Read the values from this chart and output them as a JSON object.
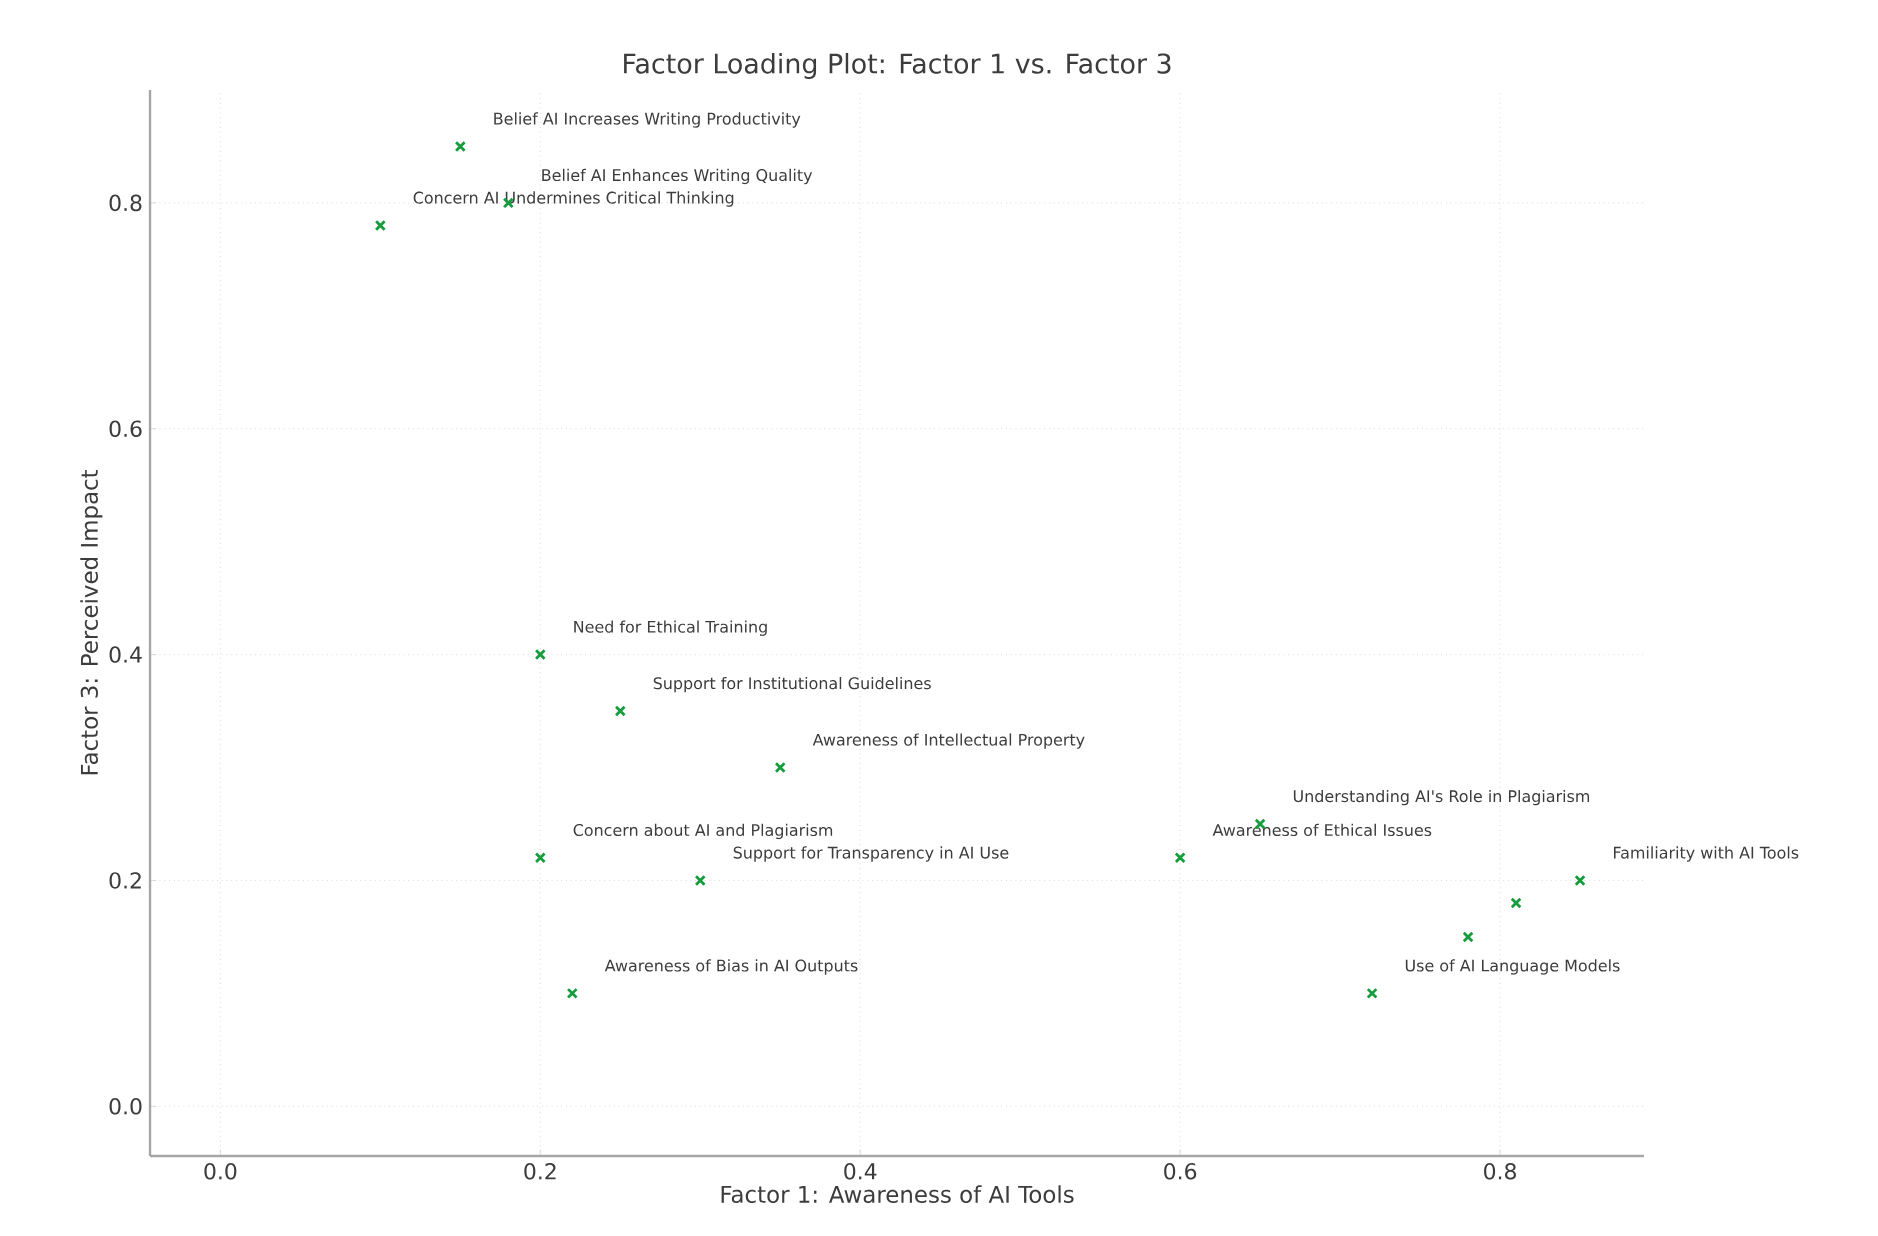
{
  "chart_data": {
    "type": "scatter",
    "title": "Factor Loading Plot: Factor 1 vs. Factor 3",
    "xlabel": "Factor 1: Awareness of AI Tools",
    "ylabel": "Factor 3: Perceived Impact",
    "x": [
      0.15,
      0.18,
      0.1,
      0.2,
      0.25,
      0.35,
      0.2,
      0.3,
      0.22,
      0.65,
      0.6,
      0.85,
      0.81,
      0.78,
      0.72
    ],
    "values": [
      0.85,
      0.8,
      0.78,
      0.4,
      0.35,
      0.3,
      0.22,
      0.2,
      0.1,
      0.25,
      0.22,
      0.2,
      0.18,
      0.15,
      0.1
    ],
    "color": "#169c3c",
    "marker": "cross",
    "grid": true,
    "xlim": [
      -0.044,
      0.89
    ],
    "ylim": [
      -0.044,
      0.9
    ],
    "xticks": [
      {
        "value": 0,
        "label": "0.0"
      },
      {
        "value": 0.2,
        "label": "0.2"
      },
      {
        "value": 0.4,
        "label": "0.4"
      },
      {
        "value": 0.6,
        "label": "0.6"
      },
      {
        "value": 0.8,
        "label": "0.8"
      }
    ],
    "yticks": [
      {
        "value": 0,
        "label": "0.0"
      },
      {
        "value": 0.2,
        "label": "0.2"
      },
      {
        "value": 0.4,
        "label": "0.4"
      },
      {
        "value": 0.6,
        "label": "0.6"
      },
      {
        "value": 0.8,
        "label": "0.8"
      }
    ],
    "annotations": [
      {
        "text": "Belief AI Increases Writing Productivity",
        "x": 0.15,
        "y": 0.85
      },
      {
        "text": "Belief AI Enhances Writing Quality",
        "x": 0.18,
        "y": 0.8
      },
      {
        "text": "Concern AI Undermines Critical Thinking",
        "x": 0.1,
        "y": 0.78
      },
      {
        "text": "Need for Ethical Training",
        "x": 0.2,
        "y": 0.4
      },
      {
        "text": "Support for Institutional Guidelines",
        "x": 0.25,
        "y": 0.35
      },
      {
        "text": "Awareness of Intellectual Property",
        "x": 0.35,
        "y": 0.3
      },
      {
        "text": "Concern about AI and Plagiarism",
        "x": 0.2,
        "y": 0.22
      },
      {
        "text": "Support for Transparency in AI Use",
        "x": 0.3,
        "y": 0.2
      },
      {
        "text": "Awareness of Bias in AI Outputs",
        "x": 0.22,
        "y": 0.1
      },
      {
        "text": "Understanding AI's Role in Plagiarism",
        "x": 0.65,
        "y": 0.25
      },
      {
        "text": "Awareness of Ethical Issues",
        "x": 0.6,
        "y": 0.22
      },
      {
        "text": "Familiarity with AI Tools",
        "x": 0.85,
        "y": 0.2
      },
      {
        "text": "Use of AI Language Models",
        "x": 0.72,
        "y": 0.1
      }
    ]
  }
}
